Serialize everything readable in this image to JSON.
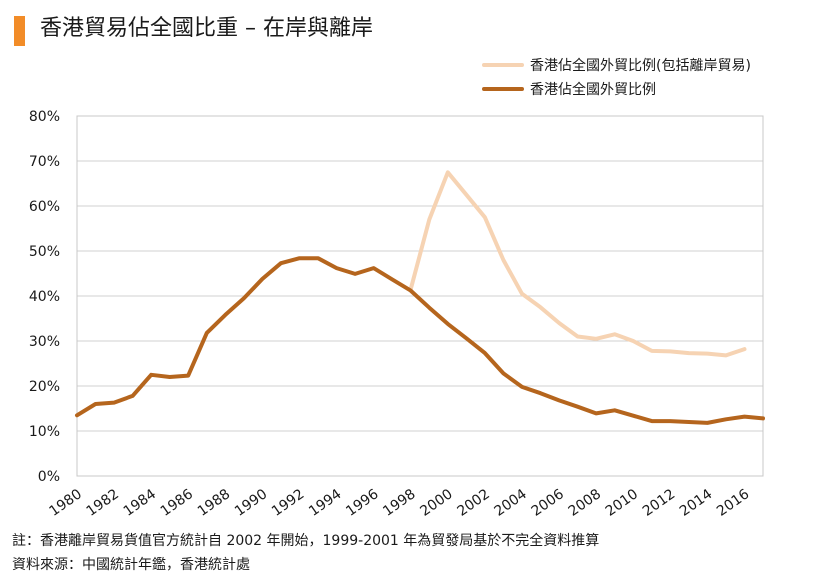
{
  "title": "香港貿易佔全國比重 – 在岸與離岸",
  "colors": {
    "accent": "#f28c28",
    "offshore": "#f6d3b3",
    "onshore": "#b5651d"
  },
  "notes": {
    "note1": "註：香港離岸貿易貨值官方統計自 2002 年開始，1999-2001 年為貿發局基於不完全資料推算",
    "note2": "資料來源：中國統計年鑑，香港統計處"
  },
  "chart_data": {
    "type": "line",
    "title": "香港貿易佔全國比重 – 在岸與離岸",
    "ylim": [
      0,
      80
    ],
    "xlim": [
      1980,
      2017
    ],
    "x_ticks": [
      "1980",
      "1982",
      "1984",
      "1986",
      "1988",
      "1990",
      "1992",
      "1994",
      "1996",
      "1998",
      "2000",
      "2002",
      "2004",
      "2006",
      "2008",
      "2010",
      "2012",
      "2014",
      "2016"
    ],
    "y_ticks": [
      "0%",
      "10%",
      "20%",
      "30%",
      "40%",
      "50%",
      "60%",
      "70%",
      "80%"
    ],
    "legend_position": "top-right",
    "series": [
      {
        "name": "香港佔全國外貿比例(包括離岸貿易)",
        "color": "#f6d3b3",
        "x": [
          1998,
          1999,
          2000,
          2001,
          2002,
          2003,
          2004,
          2005,
          2006,
          2007,
          2008,
          2009,
          2010,
          2011,
          2012,
          2013,
          2014,
          2015,
          2016
        ],
        "values": [
          41.5,
          57,
          67.5,
          62.5,
          57.5,
          48,
          40.5,
          37.5,
          34,
          31,
          30.5,
          31.5,
          30,
          27.8,
          27.7,
          27.3,
          27.2,
          26.8,
          28.2
        ]
      },
      {
        "name": "香港佔全國外貿比例",
        "color": "#b5651d",
        "x": [
          1980,
          1981,
          1982,
          1983,
          1984,
          1985,
          1986,
          1987,
          1988,
          1989,
          1990,
          1991,
          1992,
          1993,
          1994,
          1995,
          1996,
          1997,
          1998,
          1999,
          2000,
          2001,
          2002,
          2003,
          2004,
          2005,
          2006,
          2007,
          2008,
          2009,
          2010,
          2011,
          2012,
          2013,
          2014,
          2015,
          2016,
          2017
        ],
        "values": [
          13.5,
          16,
          16.3,
          17.8,
          22.5,
          22,
          22.3,
          31.8,
          35.8,
          39.5,
          43.8,
          47.3,
          48.4,
          48.4,
          46.2,
          44.9,
          46.2,
          43.7,
          41.2,
          37.4,
          33.8,
          30.6,
          27.3,
          22.8,
          19.8,
          18.4,
          16.8,
          15.4,
          13.9,
          14.6,
          13.4,
          12.2,
          12.2,
          12,
          11.8,
          12.6,
          13.2,
          12.8
        ]
      }
    ]
  }
}
